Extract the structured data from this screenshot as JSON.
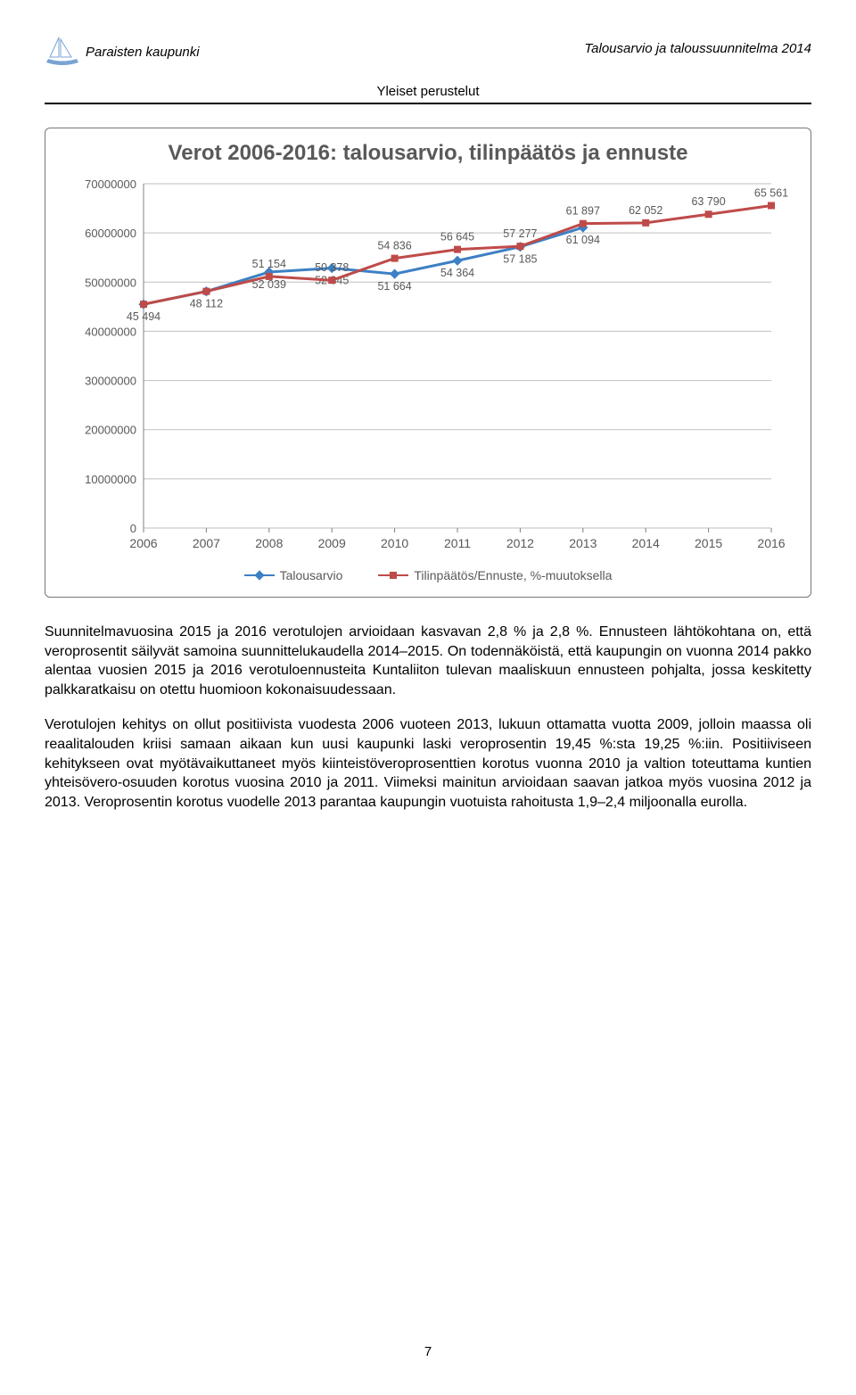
{
  "header": {
    "left": "Paraisten kaupunki",
    "center": "Yleiset perustelut",
    "right": "Talousarvio ja taloussuunnitelma 2014"
  },
  "chart": {
    "title": "Verot 2006-2016: talousarvio, tilinpäätös ja ennuste",
    "type": "line",
    "background_color": "#ffffff",
    "grid_color": "#bfbfbf",
    "axis_color": "#808080",
    "label_color": "#595959",
    "title_color": "#595959",
    "title_fontsize": 24,
    "label_fontsize": 14,
    "ylim": [
      0,
      70000000
    ],
    "ytick_step": 10000000,
    "yticks": [
      "         0",
      "10000000",
      "20000000",
      "30000000",
      "40000000",
      "50000000",
      "60000000",
      "70000000"
    ],
    "categories": [
      "2006",
      "2007",
      "2008",
      "2009",
      "2010",
      "2011",
      "2012",
      "2013",
      "2014",
      "2015",
      "2016"
    ],
    "series": [
      {
        "name": "Talousarvio",
        "color": "#3d80c4",
        "marker": "diamond",
        "line_width": 3,
        "marker_size": 6,
        "values": [
          45494,
          48112,
          52039,
          52845,
          51664,
          54364,
          57185,
          61094,
          null,
          null,
          null
        ],
        "value_labels": [
          "45 494",
          "48 112",
          "52 039",
          "52 845",
          "51 664",
          "54 364",
          "57 185",
          "61 094",
          "",
          "",
          ""
        ]
      },
      {
        "name": "Tilinpäätös/Ennuste, %-muutoksella",
        "color": "#be4b49",
        "marker": "square",
        "line_width": 3,
        "marker_size": 6,
        "values": [
          45494,
          48112,
          51154,
          50378,
          54836,
          56645,
          57277,
          61897,
          62052,
          63790,
          65561
        ],
        "value_labels": [
          "",
          "",
          "51 154",
          "50 378",
          "54 836",
          "56 645",
          "57 277",
          "61 897",
          "62 052",
          "63 790",
          "65 561"
        ]
      }
    ],
    "legend_items": [
      "Talousarvio",
      "Tilinpäätös/Ennuste, %-muutoksella"
    ]
  },
  "body": {
    "p1": "Suunnitelmavuosina 2015 ja 2016 verotulojen arvioidaan kasvavan 2,8 % ja 2,8 %. Ennusteen lähtökohtana on, että veroprosentit säilyvät samoina suunnittelukaudella 2014–2015. On todennäköistä, että kaupungin on vuonna 2014 pakko alentaa vuosien 2015 ja 2016 verotuloennusteita Kuntaliiton tulevan maaliskuun ennusteen pohjalta, jossa keskitetty palkkaratkaisu on otettu huomioon kokonaisuudessaan.",
    "p2": "Verotulojen kehitys on ollut positiivista vuodesta 2006 vuoteen 2013, lukuun ottamatta vuotta 2009, jolloin maassa oli reaalitalouden kriisi samaan aikaan kun uusi kaupunki laski veroprosentin 19,45 %:sta 19,25 %:iin. Positiiviseen kehitykseen ovat myötävaikuttaneet myös kiinteistöveroprosenttien korotus vuonna 2010 ja valtion toteuttama kuntien yhteisövero-osuuden korotus vuosina 2010 ja 2011. Viimeksi mainitun arvioidaan saavan jatkoa myös vuosina 2012 ja 2013. Veroprosentin korotus vuodelle 2013 parantaa kaupungin vuotuista rahoitusta 1,9–2,4 miljoonalla eurolla."
  },
  "page_number": "7"
}
